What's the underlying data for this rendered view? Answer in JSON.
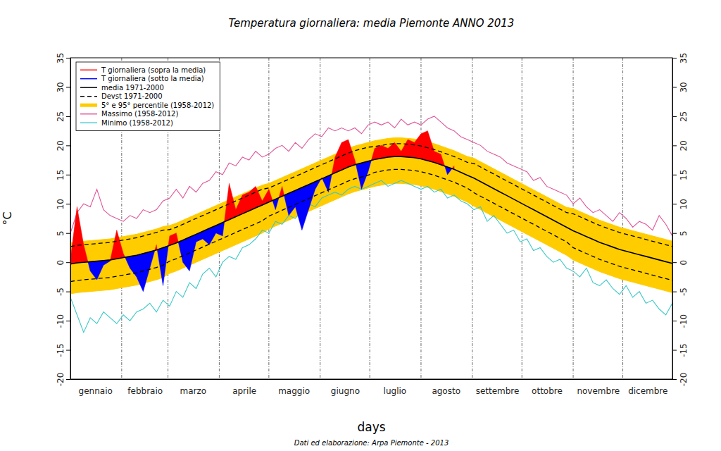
{
  "chart_data": {
    "type": "line",
    "title": "Temperatura giornaliera: media Piemonte ANNO 2013",
    "xlabel": "days",
    "ylabel": "°C",
    "annotations": [
      "Dati ed elaborazione: Arpa Piemonte - 2013"
    ],
    "xlim": [
      1,
      365
    ],
    "xticks": [
      {
        "value": 16,
        "label": "gennaio"
      },
      {
        "value": 46,
        "label": "febbraio"
      },
      {
        "value": 75,
        "label": "marzo"
      },
      {
        "value": 106,
        "label": "aprile"
      },
      {
        "value": 136,
        "label": "maggio"
      },
      {
        "value": 167,
        "label": "giugno"
      },
      {
        "value": 197,
        "label": "luglio"
      },
      {
        "value": 228,
        "label": "agosto"
      },
      {
        "value": 259,
        "label": "settembre"
      },
      {
        "value": 289,
        "label": "ottobre"
      },
      {
        "value": 320,
        "label": "novembre"
      },
      {
        "value": 350,
        "label": "dicembre"
      }
    ],
    "month_starts": [
      32,
      60,
      91,
      121,
      152,
      182,
      213,
      244,
      274,
      305,
      335
    ],
    "ylim": [
      -20,
      35
    ],
    "yticks": [
      -20,
      -15,
      -10,
      -5,
      0,
      5,
      10,
      15,
      20,
      25,
      30,
      35
    ],
    "grid": true,
    "legend": "top-left",
    "x": [
      1,
      5,
      9,
      13,
      17,
      21,
      25,
      29,
      33,
      37,
      41,
      45,
      49,
      53,
      57,
      61,
      65,
      69,
      73,
      77,
      81,
      85,
      89,
      93,
      97,
      101,
      105,
      109,
      113,
      117,
      121,
      125,
      129,
      133,
      137,
      141,
      145,
      149,
      153,
      157,
      161,
      165,
      169,
      173,
      177,
      181,
      185,
      189,
      193,
      197,
      201,
      205,
      209,
      213,
      217,
      221,
      225,
      229,
      233,
      237,
      241,
      245,
      249,
      253,
      257,
      261,
      265,
      269,
      273,
      277,
      281,
      285,
      289,
      293,
      297,
      301,
      305,
      309,
      313,
      317,
      321,
      325,
      329,
      333,
      337,
      341,
      345,
      349,
      353,
      357,
      361,
      365
    ],
    "series": [
      {
        "name": "T giornaliera (sopra la media)",
        "color": "#ff0000",
        "type": "area",
        "line_style": "solid",
        "values": [
          0.5,
          9.5,
          3.0,
          -1.5,
          -3.0,
          -0.5,
          0.2,
          5.5,
          1.5,
          -1.0,
          -2.5,
          -5.0,
          -1.0,
          3.0,
          -4.0,
          4.5,
          5.0,
          0.0,
          -1.5,
          3.5,
          4.0,
          3.0,
          5.0,
          4.5,
          13.5,
          9.0,
          11.5,
          12.0,
          13.0,
          10.5,
          12.5,
          9.0,
          13.0,
          8.0,
          9.5,
          5.5,
          9.0,
          12.5,
          14.5,
          12.0,
          18.0,
          20.5,
          21.0,
          17.5,
          12.5,
          15.5,
          19.5,
          20.0,
          19.5,
          20.5,
          19.0,
          21.0,
          20.5,
          22.0,
          22.5,
          19.0,
          18.5,
          15.0,
          16.5,
          null,
          null,
          null,
          null,
          null,
          null,
          null,
          null,
          null,
          null,
          null,
          null,
          null,
          null,
          null,
          null,
          null,
          null,
          null,
          null,
          null,
          null,
          null,
          null,
          null,
          null,
          null,
          null,
          null,
          null,
          null,
          null,
          null
        ]
      },
      {
        "name": "T giornaliera (sotto la media)",
        "color": "#0000ff",
        "type": "area",
        "line_style": "solid",
        "values": [
          0.5,
          9.5,
          3.0,
          -1.5,
          -3.0,
          -0.5,
          0.2,
          5.5,
          1.5,
          -1.0,
          -2.5,
          -5.0,
          -1.0,
          3.0,
          -4.0,
          4.5,
          5.0,
          0.0,
          -1.5,
          3.5,
          4.0,
          3.0,
          5.0,
          4.5,
          13.5,
          9.0,
          11.5,
          12.0,
          13.0,
          10.5,
          12.5,
          9.0,
          13.0,
          8.0,
          9.5,
          5.5,
          9.0,
          12.5,
          14.5,
          12.0,
          18.0,
          20.5,
          21.0,
          17.5,
          12.5,
          15.5,
          19.5,
          20.0,
          19.5,
          20.5,
          19.0,
          21.0,
          20.5,
          22.0,
          22.5,
          19.0,
          18.5,
          15.0,
          16.5,
          null,
          null,
          null,
          null,
          null,
          null,
          null,
          null,
          null,
          null,
          null,
          null,
          null,
          null,
          null,
          null,
          null,
          null,
          null,
          null,
          null,
          null,
          null,
          null,
          null,
          null,
          null,
          null,
          null,
          null,
          null,
          null,
          null
        ]
      },
      {
        "name": "media 1971-2000",
        "color": "#000000",
        "type": "baseline",
        "line_style": "solid",
        "values": [
          -0.3,
          -0.1,
          0.0,
          0.1,
          0.2,
          0.3,
          0.4,
          0.6,
          0.8,
          1.0,
          1.2,
          1.5,
          1.8,
          2.1,
          2.5,
          2.9,
          3.3,
          3.8,
          4.3,
          4.8,
          5.3,
          5.8,
          6.3,
          6.8,
          7.3,
          7.8,
          8.3,
          8.8,
          9.3,
          9.8,
          10.3,
          10.8,
          11.3,
          11.8,
          12.3,
          12.8,
          13.3,
          13.8,
          14.3,
          14.8,
          15.3,
          15.8,
          16.3,
          16.7,
          17.0,
          17.3,
          17.6,
          17.8,
          18.0,
          18.1,
          18.1,
          18.0,
          17.9,
          17.7,
          17.4,
          17.1,
          16.7,
          16.3,
          15.9,
          15.4,
          14.9,
          14.4,
          13.8,
          13.2,
          12.6,
          12.0,
          11.4,
          10.8,
          10.2,
          9.6,
          9.0,
          8.4,
          7.8,
          7.2,
          6.6,
          6.0,
          5.4,
          4.9,
          4.4,
          3.9,
          3.4,
          3.0,
          2.6,
          2.2,
          1.9,
          1.6,
          1.3,
          1.0,
          0.7,
          0.4,
          0.1,
          -0.2
        ]
      },
      {
        "name": "Devst 1971-2000",
        "color": "#000000",
        "type": "range",
        "line_style": "dashed",
        "low": [
          -3.3,
          -3.1,
          -3.0,
          -2.9,
          -2.8,
          -2.7,
          -2.6,
          -2.4,
          -2.2,
          -2.0,
          -1.8,
          -1.5,
          -1.2,
          -0.9,
          -0.5,
          0.2,
          0.6,
          1.1,
          1.6,
          2.1,
          2.6,
          3.1,
          3.6,
          4.1,
          4.6,
          5.1,
          5.6,
          6.1,
          6.6,
          7.1,
          7.9,
          8.4,
          8.9,
          9.4,
          9.9,
          10.4,
          10.9,
          11.4,
          11.9,
          12.4,
          12.9,
          13.4,
          13.9,
          14.3,
          14.6,
          14.9,
          15.4,
          15.6,
          15.8,
          15.9,
          15.9,
          15.8,
          15.7,
          15.5,
          15.2,
          14.9,
          14.5,
          14.1,
          13.7,
          13.2,
          12.7,
          11.9,
          11.3,
          10.7,
          10.1,
          9.5,
          8.9,
          8.3,
          7.7,
          7.1,
          6.5,
          5.9,
          5.3,
          4.7,
          4.1,
          3.5,
          2.5,
          2.0,
          1.5,
          1.0,
          0.5,
          0.1,
          -0.3,
          -0.7,
          -1.0,
          -1.3,
          -1.6,
          -1.9,
          -2.2,
          -2.5,
          -2.8,
          -3.1
        ],
        "high": [
          2.7,
          2.9,
          3.0,
          3.1,
          3.2,
          3.3,
          3.4,
          3.6,
          3.8,
          4.0,
          4.2,
          4.5,
          4.8,
          5.1,
          5.5,
          5.6,
          6.0,
          6.5,
          7.0,
          7.5,
          8.0,
          8.5,
          9.0,
          9.5,
          10.0,
          10.5,
          11.0,
          11.5,
          12.0,
          12.5,
          12.7,
          13.2,
          13.7,
          14.2,
          14.7,
          15.2,
          15.7,
          16.2,
          16.7,
          17.2,
          17.7,
          18.2,
          18.7,
          19.1,
          19.4,
          19.7,
          19.8,
          20.0,
          20.2,
          20.3,
          20.3,
          20.2,
          20.1,
          19.9,
          19.6,
          19.3,
          18.9,
          18.5,
          18.1,
          17.6,
          17.1,
          16.9,
          16.3,
          15.7,
          15.1,
          14.5,
          13.9,
          13.3,
          12.7,
          12.1,
          11.5,
          10.9,
          10.3,
          9.7,
          9.1,
          8.5,
          8.3,
          7.8,
          7.3,
          6.8,
          6.3,
          5.9,
          5.5,
          5.1,
          4.8,
          4.5,
          4.2,
          3.9,
          3.6,
          3.3,
          3.0,
          2.7
        ]
      },
      {
        "name": "5° e 95° percentile (1958-2012)",
        "color": "#ffcc00",
        "type": "band",
        "line_style": "solid",
        "low": [
          -5.4,
          -5.2,
          -5.1,
          -5.0,
          -4.9,
          -4.8,
          -4.7,
          -4.5,
          -4.3,
          -4.1,
          -3.9,
          -3.6,
          -3.3,
          -3.0,
          -2.6,
          -1.9,
          -1.5,
          -1.0,
          -0.5,
          0.0,
          0.5,
          1.0,
          1.5,
          2.0,
          2.5,
          3.0,
          3.5,
          4.0,
          4.5,
          5.0,
          5.7,
          6.2,
          6.7,
          7.2,
          7.7,
          8.2,
          8.7,
          9.2,
          9.7,
          10.2,
          10.7,
          11.2,
          11.7,
          12.1,
          12.4,
          12.7,
          13.0,
          13.2,
          13.4,
          13.5,
          13.5,
          13.4,
          13.3,
          13.1,
          12.8,
          12.5,
          12.1,
          11.7,
          11.3,
          10.8,
          10.3,
          9.6,
          9.0,
          8.4,
          7.8,
          7.2,
          6.6,
          6.0,
          5.4,
          4.8,
          4.2,
          3.6,
          3.0,
          2.4,
          1.8,
          1.2,
          0.4,
          -0.1,
          -0.6,
          -1.1,
          -1.6,
          -2.0,
          -2.4,
          -2.8,
          -3.1,
          -3.4,
          -3.7,
          -4.0,
          -4.3,
          -4.6,
          -4.9,
          -5.2
        ],
        "high": [
          3.3,
          3.5,
          3.6,
          3.7,
          3.8,
          3.9,
          4.0,
          4.2,
          4.4,
          4.6,
          4.8,
          5.1,
          5.4,
          5.7,
          6.1,
          6.3,
          6.7,
          7.2,
          7.7,
          8.2,
          8.7,
          9.2,
          9.7,
          10.2,
          10.7,
          11.2,
          11.7,
          12.2,
          12.7,
          13.2,
          13.5,
          14.0,
          14.5,
          15.0,
          15.5,
          16.0,
          16.5,
          17.0,
          17.5,
          18.0,
          18.5,
          19.0,
          19.5,
          19.9,
          20.2,
          20.5,
          20.8,
          21.0,
          21.2,
          21.3,
          21.3,
          21.2,
          21.1,
          20.9,
          20.6,
          20.3,
          19.9,
          19.5,
          19.1,
          18.6,
          18.1,
          17.8,
          17.2,
          16.6,
          16.0,
          15.4,
          14.8,
          14.2,
          13.6,
          13.0,
          12.4,
          11.8,
          11.2,
          10.6,
          10.0,
          9.4,
          9.2,
          8.7,
          8.2,
          7.7,
          7.2,
          6.8,
          6.4,
          6.0,
          5.7,
          5.4,
          5.1,
          4.8,
          4.5,
          4.2,
          3.9,
          3.6
        ]
      },
      {
        "name": "Massimo (1958-2012)",
        "color": "#e0559a",
        "type": "line",
        "line_style": "solid",
        "values": [
          5.0,
          8.5,
          10.0,
          9.5,
          12.5,
          9.0,
          8.0,
          7.5,
          7.0,
          8.0,
          7.5,
          9.0,
          8.5,
          9.0,
          10.5,
          11.0,
          12.5,
          11.0,
          13.0,
          12.0,
          13.5,
          14.0,
          15.5,
          15.0,
          17.0,
          16.5,
          18.0,
          17.5,
          19.0,
          18.0,
          18.5,
          19.5,
          20.0,
          19.0,
          20.5,
          19.5,
          21.0,
          22.0,
          21.5,
          23.0,
          22.5,
          23.0,
          22.5,
          23.0,
          22.0,
          23.5,
          24.0,
          23.5,
          24.0,
          23.0,
          24.5,
          23.5,
          24.0,
          23.5,
          24.5,
          25.0,
          24.0,
          23.0,
          22.5,
          21.5,
          21.0,
          20.5,
          20.0,
          19.0,
          18.5,
          18.0,
          17.0,
          16.5,
          16.0,
          15.5,
          14.0,
          14.5,
          13.0,
          12.5,
          12.0,
          11.5,
          10.0,
          11.0,
          9.5,
          8.5,
          9.0,
          8.0,
          7.0,
          8.5,
          7.5,
          6.0,
          7.0,
          6.5,
          5.5,
          8.0,
          6.5,
          4.5
        ]
      },
      {
        "name": "Minimo (1958-2012)",
        "color": "#3cc8c8",
        "type": "line",
        "line_style": "solid",
        "values": [
          -6.0,
          -9.0,
          -12.0,
          -9.5,
          -10.5,
          -8.5,
          -9.5,
          -10.5,
          -9.0,
          -10.0,
          -8.5,
          -8.0,
          -7.0,
          -8.5,
          -6.5,
          -7.5,
          -5.0,
          -6.0,
          -3.5,
          -4.5,
          -2.0,
          -1.0,
          -2.5,
          0.0,
          1.0,
          0.5,
          2.5,
          3.0,
          4.0,
          5.5,
          5.0,
          7.0,
          6.5,
          8.0,
          7.5,
          9.0,
          10.0,
          9.5,
          11.0,
          11.5,
          12.0,
          11.5,
          12.5,
          13.0,
          12.5,
          13.0,
          13.5,
          14.0,
          13.0,
          13.5,
          14.0,
          13.5,
          13.0,
          12.5,
          13.0,
          12.0,
          12.5,
          11.0,
          11.5,
          10.5,
          10.0,
          9.0,
          9.5,
          7.0,
          8.0,
          6.5,
          5.0,
          5.5,
          3.5,
          4.0,
          2.0,
          2.5,
          1.0,
          0.0,
          0.5,
          -1.0,
          -1.5,
          -2.5,
          -1.0,
          -3.5,
          -4.0,
          -3.0,
          -4.5,
          -5.5,
          -4.0,
          -6.0,
          -5.0,
          -7.0,
          -6.5,
          -8.0,
          -9.0,
          -7.0
        ]
      }
    ]
  }
}
